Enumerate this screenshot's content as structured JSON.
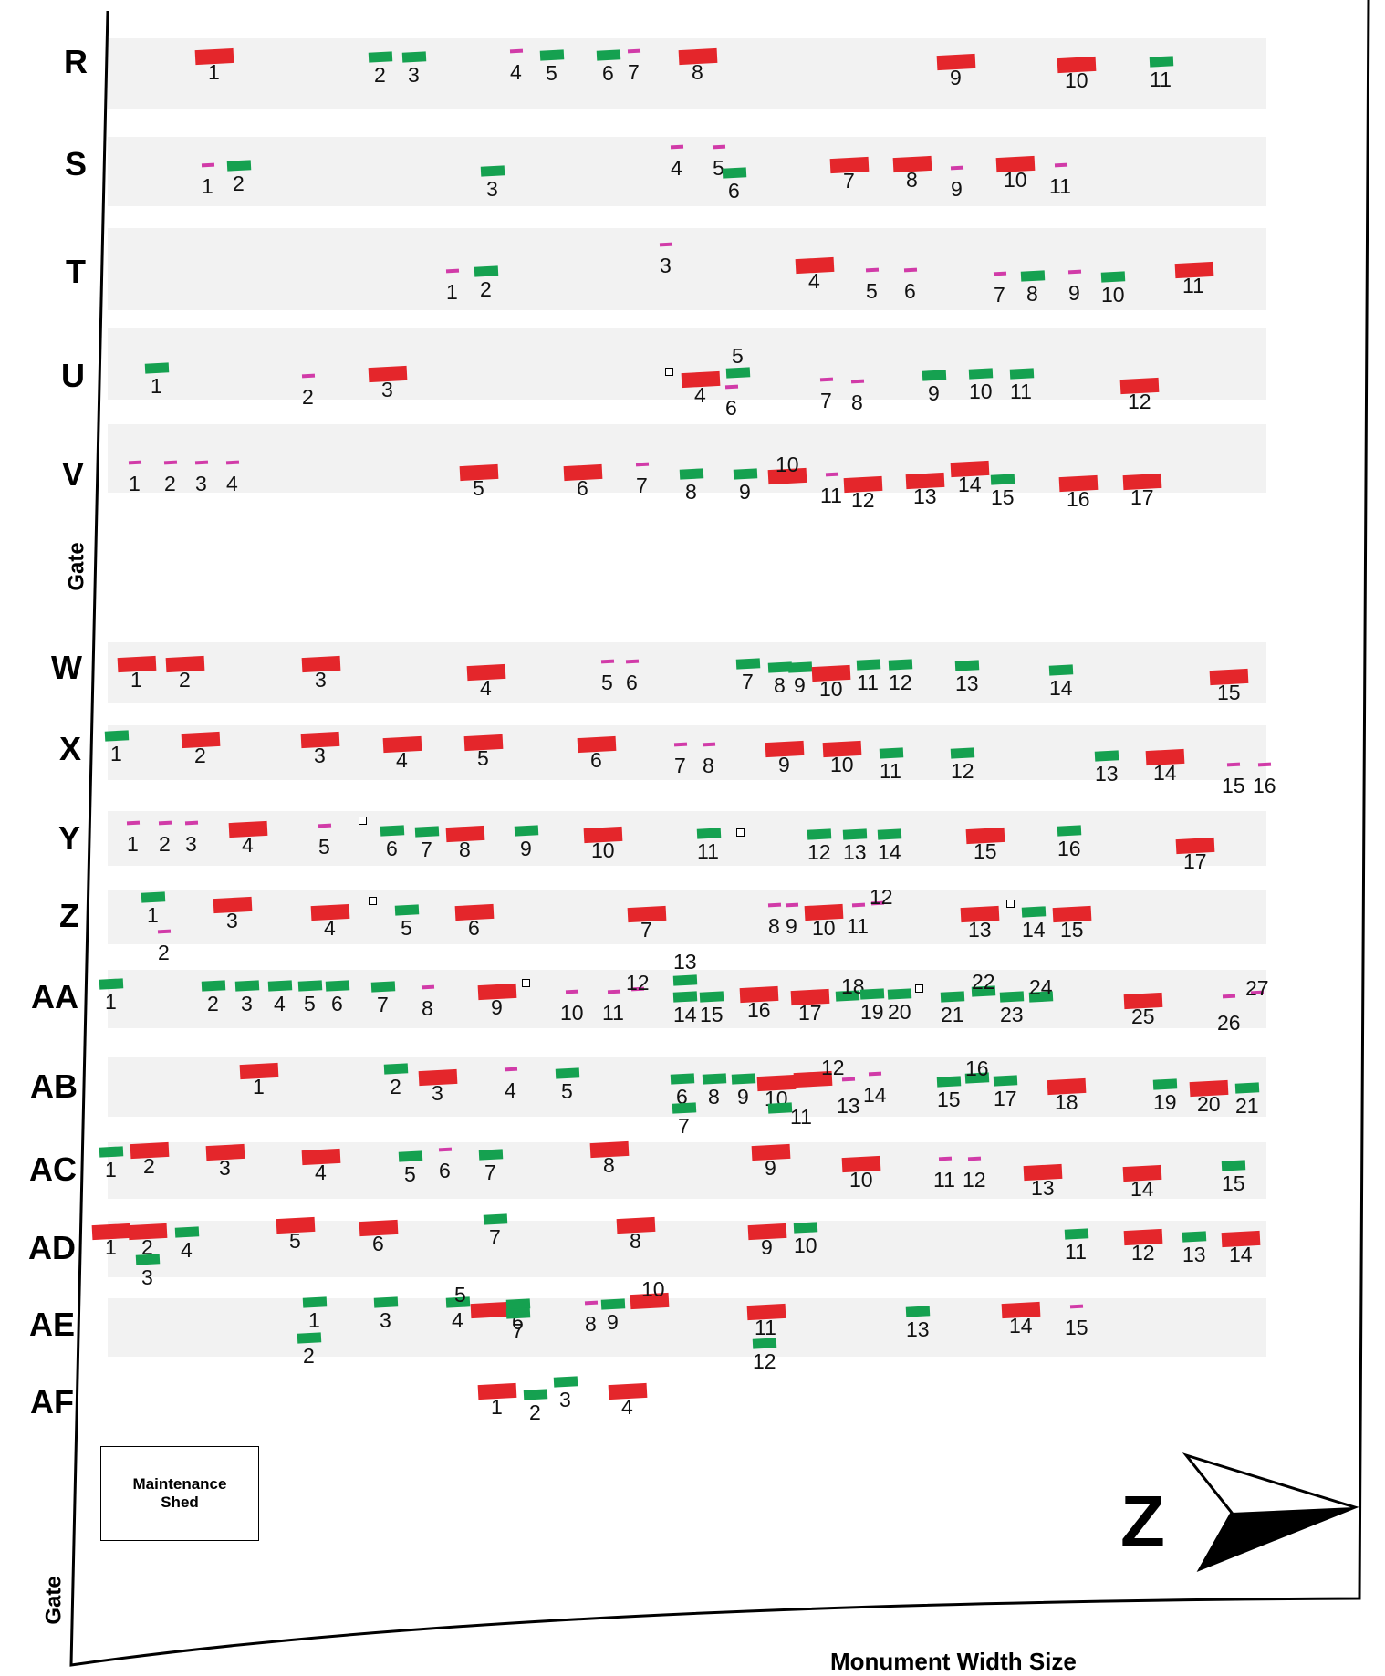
{
  "rows": [
    {
      "label": "R",
      "monuments": [
        {
          "n": "1",
          "size": "large"
        },
        {
          "n": "2",
          "size": "medium"
        },
        {
          "n": "3",
          "size": "medium"
        },
        {
          "n": "4",
          "size": "small"
        },
        {
          "n": "5",
          "size": "medium"
        },
        {
          "n": "6",
          "size": "medium"
        },
        {
          "n": "7",
          "size": "small"
        },
        {
          "n": "8",
          "size": "large"
        },
        {
          "n": "9",
          "size": "large"
        },
        {
          "n": "10",
          "size": "large"
        },
        {
          "n": "11",
          "size": "medium"
        }
      ]
    },
    {
      "label": "S",
      "monuments": [
        {
          "n": "1",
          "size": "small"
        },
        {
          "n": "2",
          "size": "medium"
        },
        {
          "n": "3",
          "size": "medium"
        },
        {
          "n": "4",
          "size": "small"
        },
        {
          "n": "5",
          "size": "small"
        },
        {
          "n": "6",
          "size": "medium"
        },
        {
          "n": "7",
          "size": "large"
        },
        {
          "n": "8",
          "size": "large"
        },
        {
          "n": "9",
          "size": "small"
        },
        {
          "n": "10",
          "size": "large"
        },
        {
          "n": "11",
          "size": "small"
        }
      ]
    },
    {
      "label": "T",
      "monuments": [
        {
          "n": "1",
          "size": "small"
        },
        {
          "n": "2",
          "size": "medium"
        },
        {
          "n": "3",
          "size": "small"
        },
        {
          "n": "4",
          "size": "large"
        },
        {
          "n": "5",
          "size": "small"
        },
        {
          "n": "6",
          "size": "small"
        },
        {
          "n": "7",
          "size": "small"
        },
        {
          "n": "8",
          "size": "medium"
        },
        {
          "n": "9",
          "size": "small"
        },
        {
          "n": "10",
          "size": "medium"
        },
        {
          "n": "11",
          "size": "large"
        }
      ]
    },
    {
      "label": "U",
      "monuments": [
        {
          "n": "1",
          "size": "medium"
        },
        {
          "n": "2",
          "size": "small"
        },
        {
          "n": "3",
          "size": "large"
        },
        {
          "n": "",
          "size": "square"
        },
        {
          "n": "4",
          "size": "large"
        },
        {
          "n": "5",
          "size": "medium"
        },
        {
          "n": "6",
          "size": "small"
        },
        {
          "n": "7",
          "size": "small"
        },
        {
          "n": "8",
          "size": "small"
        },
        {
          "n": "9",
          "size": "medium"
        },
        {
          "n": "10",
          "size": "medium"
        },
        {
          "n": "11",
          "size": "medium"
        },
        {
          "n": "12",
          "size": "large"
        }
      ]
    },
    {
      "label": "V",
      "monuments": [
        {
          "n": "1",
          "size": "small"
        },
        {
          "n": "2",
          "size": "small"
        },
        {
          "n": "3",
          "size": "small"
        },
        {
          "n": "4",
          "size": "small"
        },
        {
          "n": "5",
          "size": "large"
        },
        {
          "n": "6",
          "size": "large"
        },
        {
          "n": "7",
          "size": "small"
        },
        {
          "n": "8",
          "size": "medium"
        },
        {
          "n": "9",
          "size": "medium"
        },
        {
          "n": "10",
          "size": "large"
        },
        {
          "n": "11",
          "size": "small"
        },
        {
          "n": "12",
          "size": "large"
        },
        {
          "n": "13",
          "size": "large"
        },
        {
          "n": "14",
          "size": "large"
        },
        {
          "n": "15",
          "size": "medium"
        },
        {
          "n": "16",
          "size": "large"
        },
        {
          "n": "17",
          "size": "large"
        }
      ]
    },
    {
      "label": "W",
      "monuments": [
        {
          "n": "1",
          "size": "large"
        },
        {
          "n": "2",
          "size": "large"
        },
        {
          "n": "3",
          "size": "large"
        },
        {
          "n": "4",
          "size": "large"
        },
        {
          "n": "5",
          "size": "small"
        },
        {
          "n": "6",
          "size": "small"
        },
        {
          "n": "7",
          "size": "medium"
        },
        {
          "n": "8",
          "size": "medium"
        },
        {
          "n": "9",
          "size": "medium"
        },
        {
          "n": "10",
          "size": "large"
        },
        {
          "n": "11",
          "size": "medium"
        },
        {
          "n": "12",
          "size": "medium"
        },
        {
          "n": "13",
          "size": "medium"
        },
        {
          "n": "14",
          "size": "medium"
        },
        {
          "n": "15",
          "size": "large"
        }
      ]
    },
    {
      "label": "X",
      "monuments": [
        {
          "n": "1",
          "size": "medium"
        },
        {
          "n": "2",
          "size": "large"
        },
        {
          "n": "3",
          "size": "large"
        },
        {
          "n": "4",
          "size": "large"
        },
        {
          "n": "5",
          "size": "large"
        },
        {
          "n": "6",
          "size": "large"
        },
        {
          "n": "7",
          "size": "small"
        },
        {
          "n": "8",
          "size": "small"
        },
        {
          "n": "9",
          "size": "large"
        },
        {
          "n": "10",
          "size": "large"
        },
        {
          "n": "11",
          "size": "medium"
        },
        {
          "n": "12",
          "size": "medium"
        },
        {
          "n": "13",
          "size": "medium"
        },
        {
          "n": "14",
          "size": "large"
        },
        {
          "n": "15",
          "size": "small"
        },
        {
          "n": "16",
          "size": "small"
        }
      ]
    },
    {
      "label": "Y",
      "monuments": [
        {
          "n": "1",
          "size": "small"
        },
        {
          "n": "2",
          "size": "small"
        },
        {
          "n": "3",
          "size": "small"
        },
        {
          "n": "4",
          "size": "large"
        },
        {
          "n": "5",
          "size": "small"
        },
        {
          "n": "",
          "size": "square"
        },
        {
          "n": "6",
          "size": "medium"
        },
        {
          "n": "7",
          "size": "medium"
        },
        {
          "n": "8",
          "size": "large"
        },
        {
          "n": "9",
          "size": "medium"
        },
        {
          "n": "10",
          "size": "large"
        },
        {
          "n": "11",
          "size": "medium"
        },
        {
          "n": "",
          "size": "square"
        },
        {
          "n": "12",
          "size": "medium"
        },
        {
          "n": "13",
          "size": "medium"
        },
        {
          "n": "14",
          "size": "medium"
        },
        {
          "n": "15",
          "size": "large"
        },
        {
          "n": "16",
          "size": "medium"
        },
        {
          "n": "17",
          "size": "large"
        }
      ]
    },
    {
      "label": "Z",
      "monuments": [
        {
          "n": "1",
          "size": "medium"
        },
        {
          "n": "2",
          "size": "small"
        },
        {
          "n": "3",
          "size": "large"
        },
        {
          "n": "4",
          "size": "large"
        },
        {
          "n": "",
          "size": "square"
        },
        {
          "n": "5",
          "size": "medium"
        },
        {
          "n": "6",
          "size": "large"
        },
        {
          "n": "7",
          "size": "large"
        },
        {
          "n": "8",
          "size": "small"
        },
        {
          "n": "9",
          "size": "small"
        },
        {
          "n": "10",
          "size": "large"
        },
        {
          "n": "11",
          "size": "small"
        },
        {
          "n": "12",
          "size": "small"
        },
        {
          "n": "13",
          "size": "large"
        },
        {
          "n": "",
          "size": "square"
        },
        {
          "n": "14",
          "size": "medium"
        },
        {
          "n": "15",
          "size": "large"
        }
      ]
    },
    {
      "label": "AA",
      "monuments": [
        {
          "n": "1",
          "size": "medium"
        },
        {
          "n": "2",
          "size": "medium"
        },
        {
          "n": "3",
          "size": "medium"
        },
        {
          "n": "4",
          "size": "medium"
        },
        {
          "n": "5",
          "size": "medium"
        },
        {
          "n": "6",
          "size": "medium"
        },
        {
          "n": "7",
          "size": "medium"
        },
        {
          "n": "8",
          "size": "small"
        },
        {
          "n": "9",
          "size": "large"
        },
        {
          "n": "",
          "size": "square"
        },
        {
          "n": "10",
          "size": "small"
        },
        {
          "n": "11",
          "size": "small"
        },
        {
          "n": "12",
          "size": "small"
        },
        {
          "n": "13",
          "size": "medium"
        },
        {
          "n": "14",
          "size": "medium"
        },
        {
          "n": "15",
          "size": "medium"
        },
        {
          "n": "16",
          "size": "large"
        },
        {
          "n": "17",
          "size": "large"
        },
        {
          "n": "18",
          "size": "medium"
        },
        {
          "n": "19",
          "size": "medium"
        },
        {
          "n": "20",
          "size": "medium"
        },
        {
          "n": "",
          "size": "square"
        },
        {
          "n": "21",
          "size": "medium"
        },
        {
          "n": "22",
          "size": "medium"
        },
        {
          "n": "23",
          "size": "medium"
        },
        {
          "n": "24",
          "size": "medium"
        },
        {
          "n": "25",
          "size": "large"
        },
        {
          "n": "26",
          "size": "small"
        },
        {
          "n": "27",
          "size": "small"
        }
      ]
    },
    {
      "label": "AB",
      "monuments": [
        {
          "n": "1",
          "size": "large"
        },
        {
          "n": "2",
          "size": "medium"
        },
        {
          "n": "3",
          "size": "large"
        },
        {
          "n": "4",
          "size": "small"
        },
        {
          "n": "5",
          "size": "medium"
        },
        {
          "n": "6",
          "size": "medium"
        },
        {
          "n": "7",
          "size": "medium"
        },
        {
          "n": "8",
          "size": "medium"
        },
        {
          "n": "9",
          "size": "medium"
        },
        {
          "n": "10",
          "size": "large"
        },
        {
          "n": "11",
          "size": "medium"
        },
        {
          "n": "12",
          "size": "large"
        },
        {
          "n": "13",
          "size": "small"
        },
        {
          "n": "14",
          "size": "small"
        },
        {
          "n": "15",
          "size": "medium"
        },
        {
          "n": "16",
          "size": "medium"
        },
        {
          "n": "17",
          "size": "medium"
        },
        {
          "n": "18",
          "size": "large"
        },
        {
          "n": "19",
          "size": "medium"
        },
        {
          "n": "20",
          "size": "large"
        },
        {
          "n": "21",
          "size": "medium"
        }
      ]
    },
    {
      "label": "AC",
      "monuments": [
        {
          "n": "1",
          "size": "medium"
        },
        {
          "n": "2",
          "size": "large"
        },
        {
          "n": "3",
          "size": "large"
        },
        {
          "n": "4",
          "size": "large"
        },
        {
          "n": "5",
          "size": "medium"
        },
        {
          "n": "6",
          "size": "small"
        },
        {
          "n": "7",
          "size": "medium"
        },
        {
          "n": "8",
          "size": "large"
        },
        {
          "n": "9",
          "size": "large"
        },
        {
          "n": "10",
          "size": "large"
        },
        {
          "n": "11",
          "size": "small"
        },
        {
          "n": "12",
          "size": "small"
        },
        {
          "n": "13",
          "size": "large"
        },
        {
          "n": "14",
          "size": "large"
        },
        {
          "n": "15",
          "size": "medium"
        }
      ]
    },
    {
      "label": "AD",
      "monuments": [
        {
          "n": "1",
          "size": "large"
        },
        {
          "n": "2",
          "size": "large"
        },
        {
          "n": "3",
          "size": "medium"
        },
        {
          "n": "4",
          "size": "medium"
        },
        {
          "n": "5",
          "size": "large"
        },
        {
          "n": "6",
          "size": "large"
        },
        {
          "n": "7",
          "size": "medium"
        },
        {
          "n": "8",
          "size": "large"
        },
        {
          "n": "9",
          "size": "large"
        },
        {
          "n": "10",
          "size": "medium"
        },
        {
          "n": "11",
          "size": "medium"
        },
        {
          "n": "12",
          "size": "large"
        },
        {
          "n": "13",
          "size": "medium"
        },
        {
          "n": "14",
          "size": "large"
        }
      ]
    },
    {
      "label": "AE",
      "monuments": [
        {
          "n": "1",
          "size": "medium"
        },
        {
          "n": "2",
          "size": "medium"
        },
        {
          "n": "3",
          "size": "medium"
        },
        {
          "n": "4",
          "size": "medium"
        },
        {
          "n": "5",
          "size": "large"
        },
        {
          "n": "6",
          "size": "medium"
        },
        {
          "n": "7",
          "size": "medium"
        },
        {
          "n": "8",
          "size": "small"
        },
        {
          "n": "9",
          "size": "medium"
        },
        {
          "n": "10",
          "size": "large"
        },
        {
          "n": "11",
          "size": "large"
        },
        {
          "n": "12",
          "size": "medium"
        },
        {
          "n": "13",
          "size": "medium"
        },
        {
          "n": "14",
          "size": "large"
        },
        {
          "n": "15",
          "size": "small"
        }
      ]
    },
    {
      "label": "AF",
      "monuments": [
        {
          "n": "1",
          "size": "large"
        },
        {
          "n": "2",
          "size": "medium"
        },
        {
          "n": "3",
          "size": "medium"
        },
        {
          "n": "4",
          "size": "large"
        }
      ]
    }
  ],
  "gates": [
    "Gate",
    "Gate"
  ],
  "maintenance_shed": "Maintenance Shed",
  "north_letter": "Z",
  "legend_title": "Monument Width Size",
  "colors": {
    "large": "#e4262b",
    "medium": "#15a150",
    "small": "#d13ba8",
    "row_band": "#f2f2f2",
    "border": "#000000"
  },
  "icons": {
    "compass": "north-arrow-icon"
  }
}
